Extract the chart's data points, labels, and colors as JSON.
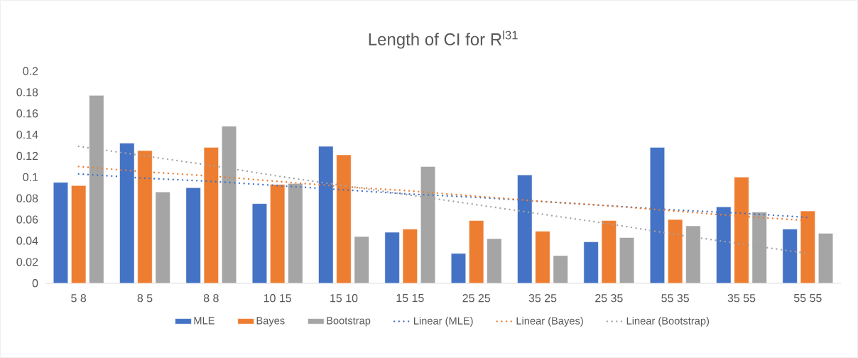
{
  "chart_data": {
    "type": "bar",
    "title": "Length of CI for R$^{l31}$",
    "categories": [
      "5 8",
      "8 5",
      "8 8",
      "10 15",
      "15 10",
      "15 15",
      "25 25",
      "35 25",
      "25 35",
      "55 35",
      "35 55",
      "55 55"
    ],
    "series": [
      {
        "name": "MLE",
        "color": "#4472c4",
        "values": [
          0.095,
          0.132,
          0.09,
          0.075,
          0.129,
          0.048,
          0.028,
          0.102,
          0.039,
          0.128,
          0.072,
          0.051
        ]
      },
      {
        "name": "Bayes",
        "color": "#ed7d31",
        "values": [
          0.092,
          0.125,
          0.128,
          0.093,
          0.121,
          0.051,
          0.059,
          0.049,
          0.059,
          0.06,
          0.1,
          0.068
        ]
      },
      {
        "name": "Bootstrap",
        "color": "#a5a5a5",
        "values": [
          0.177,
          0.086,
          0.148,
          0.094,
          0.044,
          0.11,
          0.042,
          0.026,
          0.043,
          0.054,
          0.067,
          0.047
        ]
      },
      {
        "name": "Linear (MLE)",
        "type": "line",
        "line_style": "dotted",
        "color": "#4472c4",
        "values": [
          0.103,
          0.099,
          0.096,
          0.092,
          0.088,
          0.084,
          0.081,
          0.077,
          0.073,
          0.069,
          0.066,
          0.062
        ]
      },
      {
        "name": "Linear (Bayes)",
        "type": "line",
        "line_style": "dotted",
        "color": "#ed7d31",
        "values": [
          0.11,
          0.105,
          0.101,
          0.096,
          0.091,
          0.087,
          0.082,
          0.077,
          0.073,
          0.068,
          0.063,
          0.059
        ]
      },
      {
        "name": "Linear (Bootstrap)",
        "type": "line",
        "line_style": "dotted",
        "color": "#a5a5a5",
        "values": [
          0.129,
          0.12,
          0.111,
          0.101,
          0.092,
          0.083,
          0.074,
          0.065,
          0.056,
          0.046,
          0.037,
          0.028
        ]
      }
    ],
    "ylim": [
      0,
      0.2
    ],
    "yticks": [
      0,
      0.02,
      0.04,
      0.06,
      0.08,
      0.1,
      0.12,
      0.14,
      0.16,
      0.18,
      0.2
    ],
    "grid": false,
    "legend": "bottom"
  }
}
